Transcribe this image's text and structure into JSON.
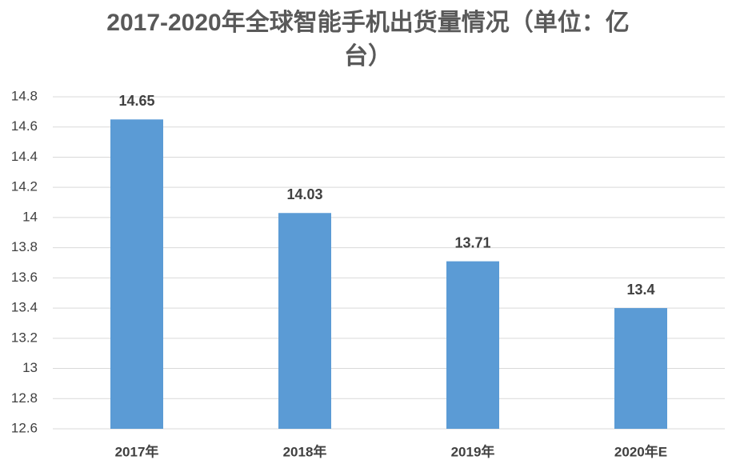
{
  "chart_data": {
    "type": "bar",
    "title": "2017-2020年全球智能手机出货量情况（单位：亿台）",
    "categories": [
      "2017年",
      "2018年",
      "2019年",
      "2020年E"
    ],
    "values": [
      14.65,
      14.03,
      13.71,
      13.4
    ],
    "color": "#5b9bd5",
    "ylim": [
      12.6,
      14.8
    ],
    "yticks": [
      12.6,
      12.8,
      13,
      13.2,
      13.4,
      13.6,
      13.8,
      14,
      14.2,
      14.4,
      14.6,
      14.8
    ],
    "grid": true
  }
}
